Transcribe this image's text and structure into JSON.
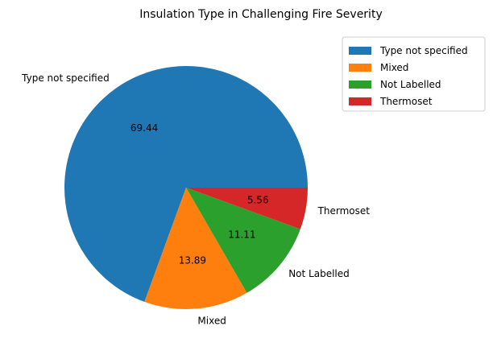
{
  "chart_data": {
    "type": "pie",
    "title": "Insulation Type in Challenging Fire Severity",
    "slices": [
      {
        "label": "Type not specified",
        "value": 69.44,
        "value_label": "69.44",
        "color": "#1f77b4"
      },
      {
        "label": "Mixed",
        "value": 13.89,
        "value_label": "13.89",
        "color": "#ff7f0e"
      },
      {
        "label": "Not Labelled",
        "value": 11.11,
        "value_label": "11.11",
        "color": "#2ca02c"
      },
      {
        "label": "Thermoset",
        "value": 5.56,
        "value_label": "5.56",
        "color": "#d62728"
      }
    ],
    "start_angle_deg": 0,
    "direction": "counterclockwise",
    "legend": {
      "placement": "upper-right-outside",
      "entries": [
        "Type not specified",
        "Mixed",
        "Not Labelled",
        "Thermoset"
      ]
    }
  }
}
